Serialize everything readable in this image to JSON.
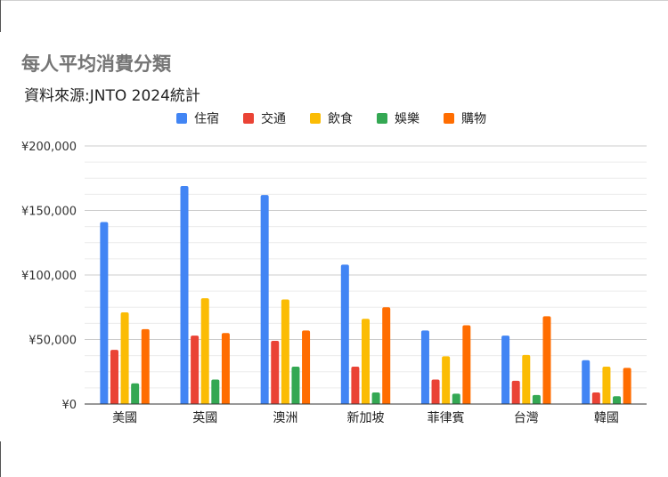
{
  "chart_data": {
    "type": "bar",
    "title": "每人平均消費分類",
    "subtitle": "資料來源:JNTO 2024統計",
    "categories": [
      "美國",
      "英國",
      "澳洲",
      "新加坡",
      "菲律賓",
      "台灣",
      "韓國"
    ],
    "series": [
      {
        "name": "住宿",
        "color": "#4285f4",
        "values": [
          141000,
          169000,
          162000,
          108000,
          57000,
          53000,
          34000
        ]
      },
      {
        "name": "交通",
        "color": "#ea4335",
        "values": [
          42000,
          53000,
          49000,
          29000,
          19000,
          18000,
          9000
        ]
      },
      {
        "name": "飲食",
        "color": "#fbbc04",
        "values": [
          71000,
          82000,
          81000,
          66000,
          37000,
          38000,
          29000
        ]
      },
      {
        "name": "娛樂",
        "color": "#34a853",
        "values": [
          16000,
          19000,
          29000,
          9000,
          8000,
          7000,
          6000
        ]
      },
      {
        "name": "購物",
        "color": "#ff6d01",
        "values": [
          58000,
          55000,
          57000,
          75000,
          61000,
          68000,
          28000
        ]
      }
    ],
    "yticks": [
      "¥0",
      "¥50,000",
      "¥100,000",
      "¥150,000",
      "¥200,000"
    ],
    "ylim": [
      0,
      200000
    ],
    "legend": "top",
    "grid": true
  }
}
